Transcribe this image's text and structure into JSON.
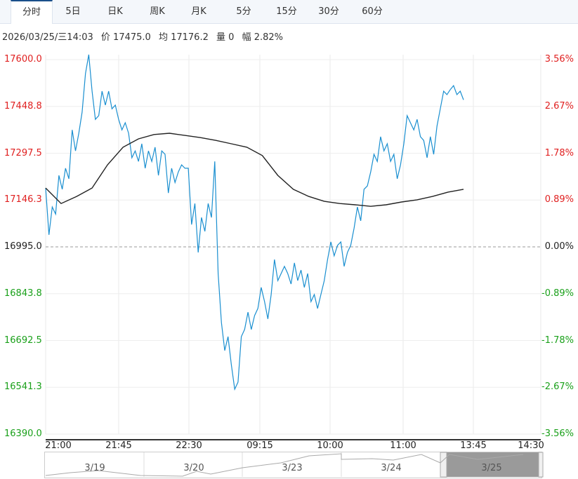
{
  "tabs": [
    "分时",
    "5日",
    "日K",
    "周K",
    "月K",
    "5分",
    "15分",
    "30分",
    "60分"
  ],
  "active_tab": 0,
  "info": {
    "datetime": "2026/03/25/三14:03",
    "price": "价 17475.0",
    "avg": "均 17176.2",
    "volume": "量 0",
    "amplitude": "幅 2.82%"
  },
  "colors": {
    "up": "#e02020",
    "down": "#1aa01a",
    "price_line": "#1a8fd0",
    "avg_line": "#222222",
    "accent": "#1a4f8a"
  },
  "chart_data": {
    "type": "line",
    "base_price": 16995.0,
    "ylim": [
      16390.0,
      17600.0
    ],
    "y_ticks_left": [
      "17600.0",
      "17448.8",
      "17297.5",
      "17146.3",
      "16995.0",
      "16843.8",
      "16692.5",
      "16541.3",
      "16390.0"
    ],
    "y_ticks_right": [
      "3.56%",
      "2.67%",
      "1.78%",
      "0.89%",
      "0.00%",
      "-0.89%",
      "-1.78%",
      "-2.67%",
      "-3.56%"
    ],
    "x_ticks": [
      "21:00",
      "21:45",
      "22:30",
      "09:15",
      "10:00",
      "11:00",
      "13:45",
      "14:30"
    ],
    "series": [
      {
        "key": "price",
        "values": [
          17185,
          17034,
          17124,
          17101,
          17226,
          17181,
          17249,
          17215,
          17373,
          17305,
          17362,
          17430,
          17555,
          17616,
          17498,
          17407,
          17419,
          17498,
          17453,
          17498,
          17441,
          17453,
          17407,
          17373,
          17396,
          17362,
          17283,
          17305,
          17271,
          17328,
          17249,
          17305,
          17271,
          17317,
          17226,
          17305,
          17294,
          17169,
          17249,
          17203,
          17237,
          17260,
          17249,
          17249,
          17067,
          17135,
          16977,
          17090,
          17045,
          17135,
          17090,
          17271,
          16909,
          16750,
          16660,
          16705,
          16614,
          16535,
          16558,
          16705,
          16728,
          16784,
          16728,
          16773,
          16796,
          16864,
          16818,
          16762,
          16841,
          16954,
          16886,
          16909,
          16932,
          16909,
          16875,
          16943,
          16886,
          16920,
          16864,
          16909,
          16818,
          16841,
          16796,
          16841,
          16886,
          16954,
          17011,
          16966,
          17000,
          17011,
          16932,
          16977,
          17000,
          17056,
          17124,
          17079,
          17181,
          17192,
          17237,
          17294,
          17271,
          17351,
          17305,
          17328,
          17271,
          17294,
          17215,
          17260,
          17328,
          17419,
          17396,
          17373,
          17407,
          17351,
          17339,
          17283,
          17351,
          17294,
          17385,
          17441,
          17498,
          17487,
          17503,
          17516,
          17487,
          17498,
          17470
        ]
      },
      {
        "key": "avg",
        "values": [
          17185,
          17135,
          17158,
          17185,
          17260,
          17317,
          17344,
          17358,
          17362,
          17355,
          17348,
          17339,
          17328,
          17317,
          17290,
          17226,
          17181,
          17158,
          17142,
          17135,
          17131,
          17126,
          17131,
          17140,
          17147,
          17158,
          17172,
          17181
        ]
      }
    ]
  },
  "navigator": {
    "days": [
      "3/19",
      "3/20",
      "3/23",
      "3/24",
      "3/25"
    ]
  }
}
